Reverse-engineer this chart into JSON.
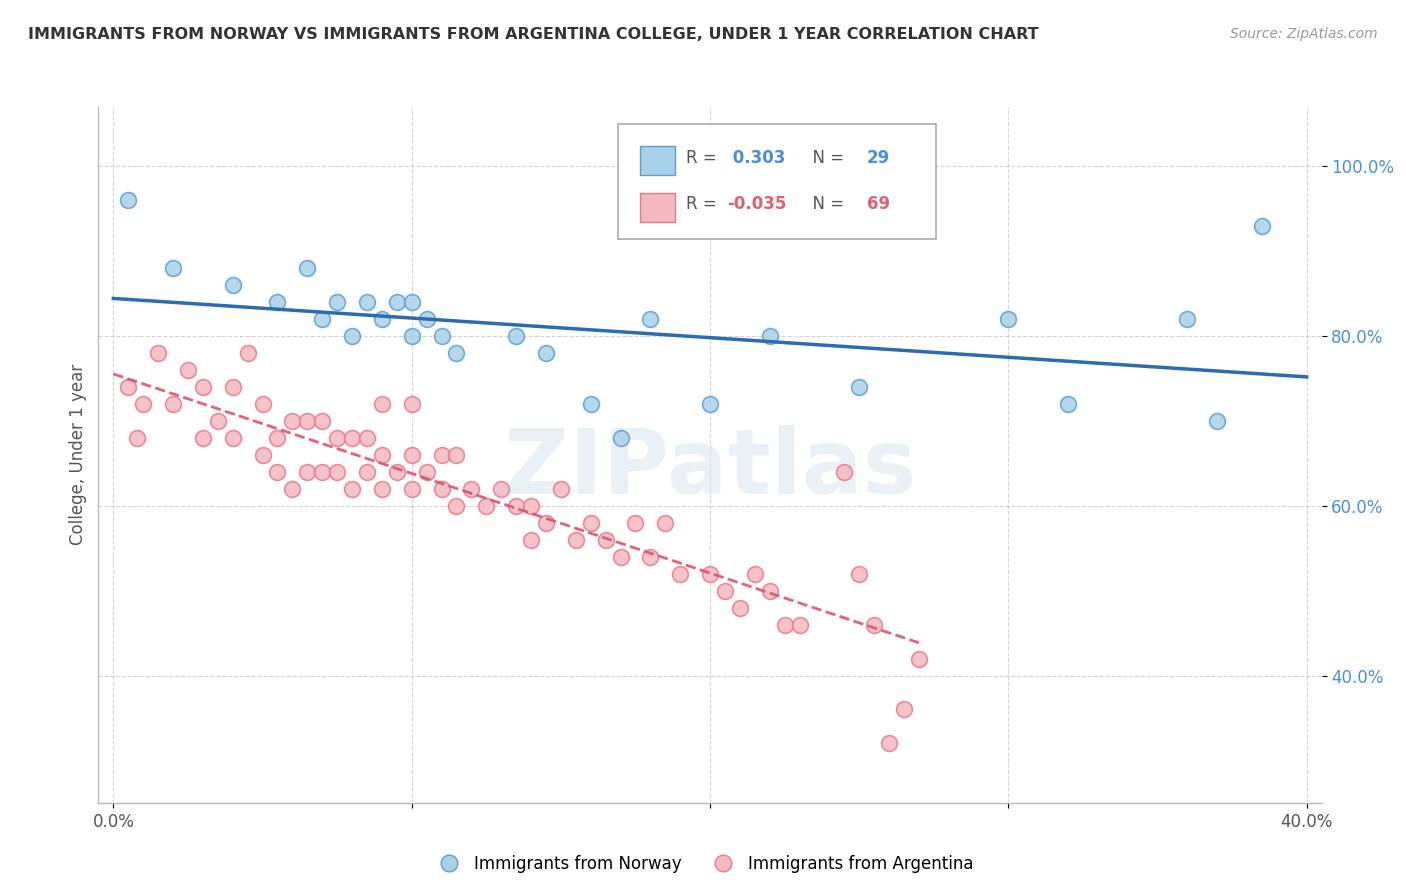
{
  "title": "IMMIGRANTS FROM NORWAY VS IMMIGRANTS FROM ARGENTINA COLLEGE, UNDER 1 YEAR CORRELATION CHART",
  "source": "Source: ZipAtlas.com",
  "ylabel": "College, Under 1 year",
  "xlim": [
    -0.005,
    0.405
  ],
  "ylim": [
    0.25,
    1.07
  ],
  "x_ticks": [
    0.0,
    0.1,
    0.2,
    0.3,
    0.4
  ],
  "x_tick_labels": [
    "0.0%",
    "",
    "",
    "",
    "40.0%"
  ],
  "y_ticks": [
    0.4,
    0.6,
    0.8,
    1.0
  ],
  "y_tick_labels": [
    "40.0%",
    "60.0%",
    "80.0%",
    "100.0%"
  ],
  "norway_R": 0.303,
  "norway_N": 29,
  "argentina_R": -0.035,
  "argentina_N": 69,
  "norway_color": "#a8d0e8",
  "argentina_color": "#f4b8c1",
  "norway_edge_color": "#5a9fd4",
  "argentina_edge_color": "#e87a8a",
  "norway_line_color": "#2b6cb0",
  "argentina_line_color": "#e05070",
  "norway_scatter_x": [
    0.005,
    0.02,
    0.04,
    0.055,
    0.065,
    0.07,
    0.075,
    0.08,
    0.085,
    0.09,
    0.095,
    0.1,
    0.1,
    0.105,
    0.11,
    0.115,
    0.135,
    0.145,
    0.16,
    0.17,
    0.18,
    0.2,
    0.22,
    0.25,
    0.3,
    0.32,
    0.36,
    0.37,
    0.385
  ],
  "norway_scatter_y": [
    0.96,
    0.88,
    0.86,
    0.84,
    0.88,
    0.82,
    0.84,
    0.8,
    0.84,
    0.82,
    0.84,
    0.8,
    0.84,
    0.82,
    0.8,
    0.78,
    0.8,
    0.78,
    0.72,
    0.68,
    0.82,
    0.72,
    0.8,
    0.74,
    0.82,
    0.72,
    0.82,
    0.7,
    0.93
  ],
  "argentina_scatter_x": [
    0.005,
    0.008,
    0.01,
    0.015,
    0.02,
    0.025,
    0.03,
    0.03,
    0.035,
    0.04,
    0.04,
    0.045,
    0.05,
    0.05,
    0.055,
    0.055,
    0.06,
    0.06,
    0.065,
    0.065,
    0.07,
    0.07,
    0.075,
    0.075,
    0.08,
    0.08,
    0.085,
    0.085,
    0.09,
    0.09,
    0.09,
    0.095,
    0.1,
    0.1,
    0.1,
    0.105,
    0.11,
    0.11,
    0.115,
    0.115,
    0.12,
    0.125,
    0.13,
    0.135,
    0.14,
    0.14,
    0.145,
    0.15,
    0.155,
    0.16,
    0.165,
    0.17,
    0.175,
    0.18,
    0.185,
    0.19,
    0.2,
    0.205,
    0.21,
    0.215,
    0.22,
    0.225,
    0.23,
    0.245,
    0.25,
    0.255,
    0.26,
    0.265,
    0.27
  ],
  "argentina_scatter_y": [
    0.74,
    0.68,
    0.72,
    0.78,
    0.72,
    0.76,
    0.68,
    0.74,
    0.7,
    0.68,
    0.74,
    0.78,
    0.66,
    0.72,
    0.64,
    0.68,
    0.62,
    0.7,
    0.64,
    0.7,
    0.64,
    0.7,
    0.64,
    0.68,
    0.62,
    0.68,
    0.64,
    0.68,
    0.62,
    0.66,
    0.72,
    0.64,
    0.62,
    0.66,
    0.72,
    0.64,
    0.62,
    0.66,
    0.6,
    0.66,
    0.62,
    0.6,
    0.62,
    0.6,
    0.56,
    0.6,
    0.58,
    0.62,
    0.56,
    0.58,
    0.56,
    0.54,
    0.58,
    0.54,
    0.58,
    0.52,
    0.52,
    0.5,
    0.48,
    0.52,
    0.5,
    0.46,
    0.46,
    0.64,
    0.52,
    0.46,
    0.32,
    0.36,
    0.42
  ],
  "watermark": "ZIPatlas",
  "background_color": "#ffffff",
  "grid_color": "#c8c8c8"
}
